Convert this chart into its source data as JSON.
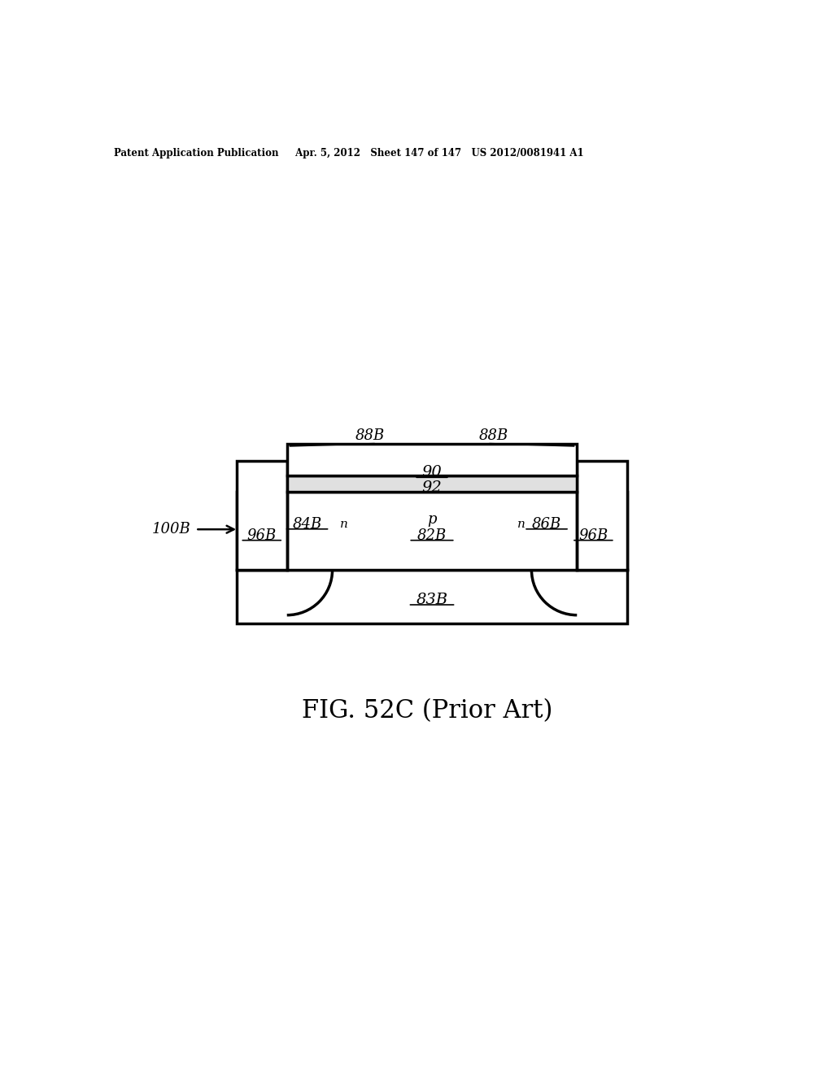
{
  "bg_color": "#ffffff",
  "line_color": "#000000",
  "line_width": 2.5,
  "header_text": "Patent Application Publication     Apr. 5, 2012   Sheet 147 of 147   US 2012/0081941 A1",
  "caption": "FIG. 52C (Prior Art)",
  "label_100B": "100B",
  "label_96B_left": "96B",
  "label_84B": "84B",
  "label_n_left": "n",
  "label_82B": "82B",
  "label_p": "p",
  "label_86B": "86B",
  "label_n_right": "n",
  "label_96B_right": "96B",
  "label_83B": "83B",
  "label_90": "90",
  "label_92": "92",
  "label_88B_left": "88B",
  "label_88B_right": "88B"
}
